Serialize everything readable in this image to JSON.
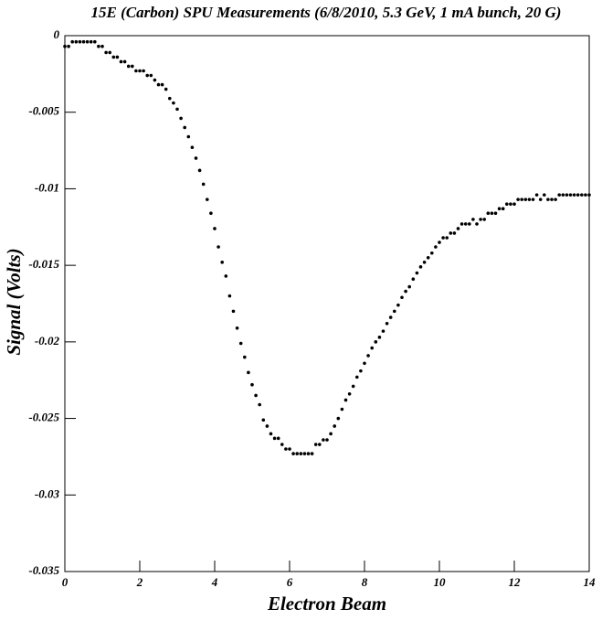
{
  "chart_data": {
    "type": "scatter",
    "title": "15E (Carbon) SPU Measurements (6/8/2010, 5.3 GeV, 1 mA bunch, 20 G)",
    "xlabel": "Electron Beam",
    "ylabel": "Signal (Volts)",
    "color": "#000000",
    "xlim": [
      0,
      14
    ],
    "ylim": [
      -0.035,
      0
    ],
    "xticks": [
      0,
      2,
      4,
      6,
      8,
      10,
      12,
      14
    ],
    "yticks": [
      0,
      -0.005,
      -0.01,
      -0.015,
      -0.02,
      -0.025,
      -0.03,
      -0.035
    ],
    "x": [
      0,
      0.1,
      0.2,
      0.3,
      0.4,
      0.5,
      0.6,
      0.7,
      0.8,
      0.9,
      1,
      1.1,
      1.2,
      1.3,
      1.4,
      1.5,
      1.6,
      1.7,
      1.8,
      1.9,
      2,
      2.1,
      2.2,
      2.3,
      2.4,
      2.5,
      2.6,
      2.7,
      2.8,
      2.9,
      3,
      3.1,
      3.2,
      3.3,
      3.4,
      3.5,
      3.6,
      3.7,
      3.8,
      3.9,
      4,
      4.1,
      4.2,
      4.3,
      4.4,
      4.5,
      4.6,
      4.7,
      4.8,
      4.9,
      5,
      5.1,
      5.2,
      5.3,
      5.4,
      5.5,
      5.6,
      5.7,
      5.8,
      5.9,
      6,
      6.1,
      6.2,
      6.3,
      6.4,
      6.5,
      6.6,
      6.7,
      6.8,
      6.9,
      7,
      7.1,
      7.2,
      7.3,
      7.4,
      7.5,
      7.6,
      7.7,
      7.8,
      7.9,
      8,
      8.1,
      8.2,
      8.3,
      8.4,
      8.5,
      8.6,
      8.7,
      8.8,
      8.9,
      9,
      9.1,
      9.2,
      9.3,
      9.4,
      9.5,
      9.6,
      9.7,
      9.8,
      9.9,
      10,
      10.1,
      10.2,
      10.3,
      10.4,
      10.5,
      10.6,
      10.7,
      10.8,
      10.9,
      11,
      11.1,
      11.2,
      11.3,
      11.4,
      11.5,
      11.6,
      11.7,
      11.8,
      11.9,
      12,
      12.1,
      12.2,
      12.3,
      12.4,
      12.5,
      12.6,
      12.7,
      12.8,
      12.9,
      13,
      13.1,
      13.2,
      13.3,
      13.4,
      13.5,
      13.6,
      13.7,
      13.8,
      13.9,
      14
    ],
    "values": [
      -0.0007,
      -0.0007,
      -0.0004,
      -0.0004,
      -0.0004,
      -0.0004,
      -0.0004,
      -0.0004,
      -0.0004,
      -0.0007,
      -0.0007,
      -0.0011,
      -0.0011,
      -0.0014,
      -0.0014,
      -0.0017,
      -0.0017,
      -0.002,
      -0.002,
      -0.0023,
      -0.0023,
      -0.0023,
      -0.0026,
      -0.0026,
      -0.0029,
      -0.0032,
      -0.0032,
      -0.0035,
      -0.0041,
      -0.0044,
      -0.0048,
      -0.0054,
      -0.006,
      -0.0066,
      -0.0073,
      -0.008,
      -0.0088,
      -0.0097,
      -0.0107,
      -0.0116,
      -0.0126,
      -0.0138,
      -0.0148,
      -0.0157,
      -0.017,
      -0.018,
      -0.0191,
      -0.0201,
      -0.021,
      -0.022,
      -0.0228,
      -0.0235,
      -0.0241,
      -0.0251,
      -0.0255,
      -0.026,
      -0.0263,
      -0.0263,
      -0.0267,
      -0.027,
      -0.027,
      -0.0273,
      -0.0273,
      -0.0273,
      -0.0273,
      -0.0273,
      -0.0273,
      -0.0267,
      -0.0267,
      -0.0264,
      -0.0264,
      -0.026,
      -0.0255,
      -0.025,
      -0.0244,
      -0.0238,
      -0.0234,
      -0.0229,
      -0.0223,
      -0.0219,
      -0.0214,
      -0.0209,
      -0.0204,
      -0.02,
      -0.0197,
      -0.0193,
      -0.0188,
      -0.0184,
      -0.018,
      -0.0176,
      -0.0171,
      -0.0167,
      -0.0164,
      -0.0159,
      -0.0155,
      -0.0151,
      -0.0148,
      -0.0145,
      -0.0142,
      -0.0138,
      -0.0135,
      -0.0132,
      -0.0132,
      -0.0129,
      -0.0129,
      -0.0126,
      -0.0123,
      -0.0123,
      -0.0123,
      -0.012,
      -0.0123,
      -0.012,
      -0.012,
      -0.0116,
      -0.0116,
      -0.0116,
      -0.0113,
      -0.0113,
      -0.011,
      -0.011,
      -0.011,
      -0.0107,
      -0.0107,
      -0.0107,
      -0.0107,
      -0.0107,
      -0.0104,
      -0.0107,
      -0.0104,
      -0.0107,
      -0.0107,
      -0.0107,
      -0.0104,
      -0.0104,
      -0.0104,
      -0.0104,
      -0.0104,
      -0.0104,
      -0.0104,
      -0.0104,
      -0.0104
    ]
  }
}
